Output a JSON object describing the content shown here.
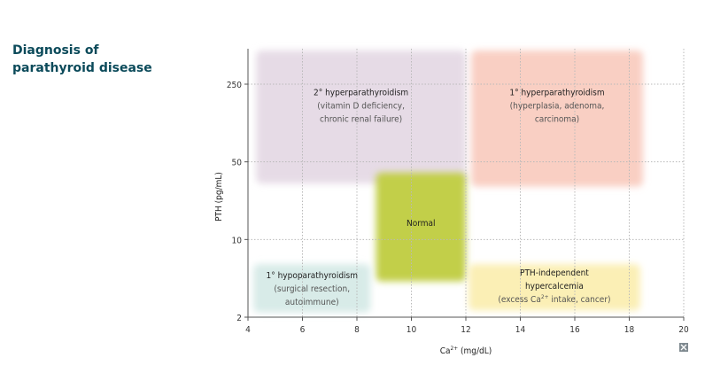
{
  "sidebar": {
    "title_line1": "Diagnosis of",
    "title_line2": "parathyroid disease"
  },
  "chart_data": {
    "type": "region-map",
    "title": "Diagnosis of parathyroid disease",
    "xlabel_base": "Ca",
    "xlabel_sup": "2+",
    "xlabel_unit": " (mg/dL)",
    "ylabel": "PTH (pg/mL)",
    "xlim": [
      4,
      20
    ],
    "xticks": [
      4,
      6,
      8,
      10,
      12,
      14,
      16,
      18,
      20
    ],
    "yscale": "log",
    "ylim": [
      2,
      600
    ],
    "yticks": [
      2,
      10,
      50,
      250
    ],
    "grid": true,
    "regions": [
      {
        "id": "secondary-hyperparathyroidism",
        "x": [
          4.3,
          12.0
        ],
        "y": [
          32,
          600
        ],
        "color": "#e6dbe6",
        "lines": [
          "2° hyperparathyroidism",
          "(vitamin D deficiency,",
          "chronic renal failure)"
        ]
      },
      {
        "id": "primary-hyperparathyroidism",
        "x": [
          12.2,
          18.5
        ],
        "y": [
          30,
          600
        ],
        "color": "#f9cfc3",
        "lines": [
          "1° hyperparathyroidism",
          "(hyperplasia, adenoma,",
          "carcinoma)"
        ]
      },
      {
        "id": "normal",
        "x": [
          8.7,
          12.0
        ],
        "y": [
          4.2,
          40
        ],
        "color": "#c2cf4a",
        "lines": [
          "Normal"
        ]
      },
      {
        "id": "primary-hypoparathyroidism",
        "x": [
          4.2,
          8.5
        ],
        "y": [
          2.2,
          6.0
        ],
        "color": "#d8ebe8",
        "lines": [
          "1° hypoparathyroidism",
          "(surgical resection,",
          "autoimmune)"
        ]
      },
      {
        "id": "pth-independent-hypercalcemia",
        "x": [
          12.1,
          18.4
        ],
        "y": [
          2.3,
          6.0
        ],
        "color": "#fbefb5",
        "lines": [
          "PTH-independent",
          "hypercalcemia",
          "(excess Ca",
          "2+",
          " intake, cancer)"
        ]
      }
    ]
  },
  "expand_icon": "expand-icon"
}
